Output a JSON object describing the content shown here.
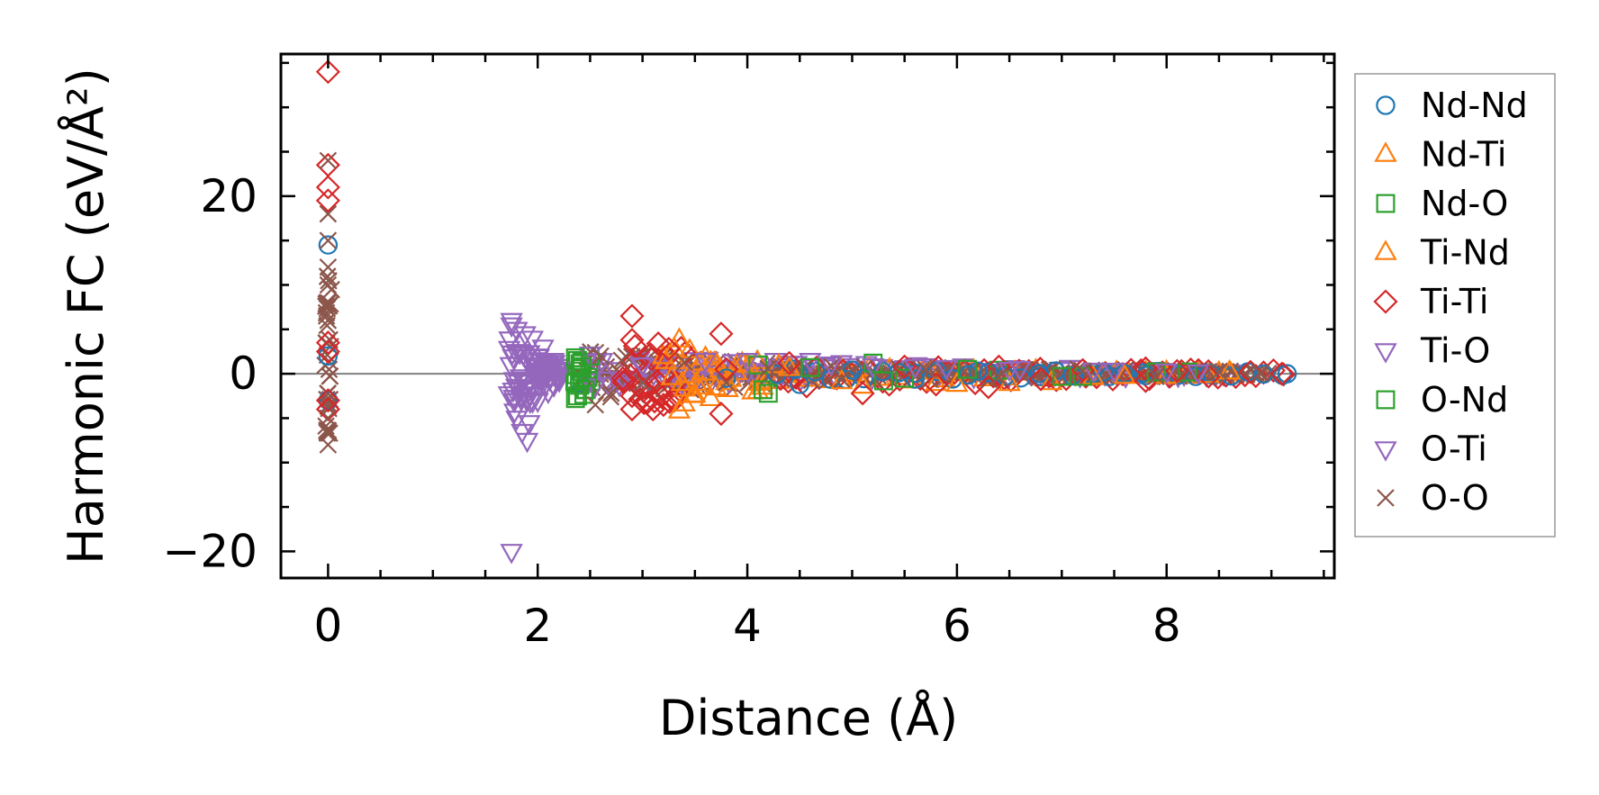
{
  "chart_data": {
    "type": "scatter",
    "title": "",
    "xlabel": "Distance (Å)",
    "ylabel": "Harmonic FC (eV/Å²)",
    "xlim": [
      -0.45,
      9.6
    ],
    "ylim": [
      -23,
      36
    ],
    "xticks": [
      0,
      2,
      4,
      6,
      8
    ],
    "xtick_labels": [
      "0",
      "2",
      "4",
      "6",
      "8"
    ],
    "yticks": [
      -20,
      0,
      20
    ],
    "ytick_labels": [
      "−20",
      "0",
      "20"
    ],
    "xminor_step": 0.5,
    "yminor_step": 5,
    "grid": false,
    "zero_line": true,
    "legend_position": "outside-right",
    "series": [
      {
        "name": "Nd-Nd",
        "color": "#1f77b4",
        "marker": "circle",
        "points": [
          [
            0,
            14.5
          ],
          [
            0,
            -3
          ],
          [
            0,
            2
          ],
          [
            2.4,
            -1
          ],
          [
            3.8,
            -0.5
          ],
          [
            4.5,
            -1.2
          ],
          [
            5.0,
            0.4
          ],
          [
            5.6,
            -0.6
          ],
          [
            6.2,
            0.3
          ],
          [
            6.8,
            -0.3
          ],
          [
            7.4,
            0.2
          ],
          [
            7.8,
            -0.2
          ],
          [
            8.4,
            0.1
          ],
          [
            9.15,
            0
          ]
        ]
      },
      {
        "name": "Nd-Ti",
        "color": "#ff7f0e",
        "marker": "triangle-up",
        "points": [
          [
            3.35,
            3.8
          ],
          [
            3.35,
            -4.2
          ],
          [
            3.45,
            2.6
          ],
          [
            3.5,
            -2.4
          ],
          [
            3.6,
            1.8
          ],
          [
            3.7,
            -1.6
          ],
          [
            4.1,
            -2.0
          ],
          [
            4.3,
            0.9
          ],
          [
            4.9,
            -0.9
          ],
          [
            5.8,
            -1.1
          ],
          [
            6.5,
            -1.1
          ],
          [
            7.3,
            -0.4
          ],
          [
            8.0,
            -0.3
          ],
          [
            8.6,
            0.2
          ]
        ]
      },
      {
        "name": "Nd-O",
        "color": "#2ca02c",
        "marker": "square",
        "points": [
          [
            2.38,
            -2.5
          ],
          [
            2.38,
            1.5
          ],
          [
            2.4,
            -0.9
          ],
          [
            2.4,
            0.3
          ],
          [
            2.45,
            -1.8
          ],
          [
            2.5,
            2.0
          ],
          [
            4.2,
            -2.2
          ],
          [
            4.1,
            1.0
          ],
          [
            5.2,
            1.2
          ],
          [
            5.5,
            -0.5
          ],
          [
            6.4,
            0.4
          ],
          [
            7.2,
            -0.3
          ],
          [
            8.2,
            0.2
          ]
        ]
      },
      {
        "name": "Ti-Nd",
        "color": "#ff7f0e",
        "marker": "triangle-up",
        "points": [
          [
            3.3,
            2.8
          ],
          [
            3.4,
            -3.4
          ],
          [
            3.55,
            1.2
          ],
          [
            3.65,
            -2.8
          ],
          [
            3.8,
            -1.0
          ],
          [
            4.4,
            0.6
          ],
          [
            5.1,
            -1.4
          ],
          [
            6.0,
            -1.2
          ],
          [
            6.9,
            -1.0
          ],
          [
            7.6,
            -0.3
          ],
          [
            8.4,
            -0.2
          ]
        ]
      },
      {
        "name": "Ti-Ti",
        "color": "#d62728",
        "marker": "diamond",
        "points": [
          [
            0,
            34
          ],
          [
            0,
            23.5
          ],
          [
            0,
            21
          ],
          [
            0,
            19.5
          ],
          [
            0,
            3.5
          ],
          [
            0,
            2.5
          ],
          [
            0,
            -3
          ],
          [
            0,
            -4
          ],
          [
            2.9,
            6.5
          ],
          [
            2.9,
            3.8
          ],
          [
            2.9,
            -2.5
          ],
          [
            2.9,
            -4
          ],
          [
            3.05,
            -3.2
          ],
          [
            3.1,
            -4
          ],
          [
            3.15,
            3.4
          ],
          [
            3.2,
            -3.5
          ],
          [
            3.25,
            2.8
          ],
          [
            3.75,
            4.5
          ],
          [
            3.75,
            -4.5
          ],
          [
            3.8,
            0.5
          ],
          [
            4.4,
            1.2
          ],
          [
            5.1,
            -2.2
          ],
          [
            5.5,
            0.8
          ],
          [
            5.8,
            -1.2
          ],
          [
            6.3,
            -1.5
          ],
          [
            6.4,
            0.8
          ],
          [
            6.8,
            -0.6
          ],
          [
            7.2,
            0.4
          ],
          [
            7.8,
            0.6
          ],
          [
            7.8,
            -0.8
          ],
          [
            8.1,
            0.3
          ],
          [
            8.4,
            -0.3
          ],
          [
            8.8,
            0.2
          ],
          [
            9.1,
            0.0
          ]
        ]
      },
      {
        "name": "Ti-O",
        "color": "#9467bd",
        "marker": "triangle-down",
        "points": [
          [
            1.75,
            6
          ],
          [
            1.75,
            -20
          ],
          [
            1.8,
            5
          ],
          [
            1.8,
            -5
          ],
          [
            1.85,
            -6.5
          ],
          [
            1.9,
            -7.5
          ],
          [
            1.95,
            4
          ],
          [
            2.0,
            -3
          ],
          [
            2.05,
            3
          ],
          [
            2.1,
            -2
          ],
          [
            2.15,
            1.5
          ],
          [
            2.2,
            0.5
          ],
          [
            2.5,
            2.2
          ],
          [
            3.0,
            1.0
          ],
          [
            4.6,
            1.5
          ],
          [
            5.2,
            0.9
          ],
          [
            5.9,
            0.7
          ],
          [
            6.6,
            0.6
          ],
          [
            7.5,
            0.4
          ],
          [
            8.3,
            0.2
          ]
        ]
      },
      {
        "name": "O-Nd",
        "color": "#2ca02c",
        "marker": "square",
        "points": [
          [
            2.36,
            -2.8
          ],
          [
            2.36,
            1.8
          ],
          [
            2.4,
            -1.3
          ],
          [
            2.42,
            0.8
          ],
          [
            2.48,
            -0.4
          ],
          [
            4.15,
            -1.8
          ],
          [
            4.6,
            0.7
          ],
          [
            5.3,
            -0.8
          ],
          [
            6.1,
            0.5
          ],
          [
            7.0,
            -0.3
          ],
          [
            7.9,
            0.2
          ]
        ]
      },
      {
        "name": "O-Ti",
        "color": "#9467bd",
        "marker": "triangle-down",
        "points": [
          [
            1.75,
            5.5
          ],
          [
            1.78,
            -4.2
          ],
          [
            1.82,
            2.5
          ],
          [
            1.85,
            -2.5
          ],
          [
            1.88,
            4.5
          ],
          [
            1.92,
            -5.5
          ],
          [
            1.96,
            1.0
          ],
          [
            2.0,
            2.0
          ],
          [
            2.05,
            -1.0
          ],
          [
            2.1,
            0.8
          ],
          [
            2.18,
            -0.5
          ],
          [
            3.6,
            1.5
          ],
          [
            4.0,
            1.5
          ],
          [
            4.8,
            1.1
          ],
          [
            5.6,
            0.8
          ],
          [
            6.5,
            0.5
          ],
          [
            7.3,
            0.4
          ],
          [
            8.0,
            0.3
          ]
        ]
      },
      {
        "name": "O-O",
        "color": "#8c564b",
        "marker": "x",
        "points": [
          [
            0,
            24
          ],
          [
            0,
            18
          ],
          [
            0,
            15
          ],
          [
            0,
            12
          ],
          [
            0,
            10
          ],
          [
            0,
            8
          ],
          [
            0,
            6
          ],
          [
            0,
            -5
          ],
          [
            0,
            -6.5
          ],
          [
            0,
            -8
          ],
          [
            2.55,
            -3.5
          ],
          [
            2.6,
            2.0
          ],
          [
            2.7,
            -2.2
          ],
          [
            2.8,
            1.5
          ],
          [
            3.0,
            -1.0
          ],
          [
            3.4,
            1.3
          ],
          [
            3.8,
            -1.0
          ],
          [
            4.2,
            0.6
          ],
          [
            4.9,
            -0.6
          ],
          [
            5.7,
            0.5
          ],
          [
            6.4,
            -0.4
          ],
          [
            7.2,
            0.3
          ],
          [
            7.9,
            -0.3
          ],
          [
            8.5,
            0.2
          ],
          [
            8.9,
            0.1
          ]
        ]
      }
    ],
    "bands": [
      {
        "series": "O-Ti",
        "x_from": 1.72,
        "x_to": 2.22,
        "y_low_from": -5.0,
        "y_low_to": -0.8,
        "y_high_from": 4.0,
        "y_high_to": 0.8,
        "count": 70
      },
      {
        "series": "Nd-O",
        "x_from": 2.36,
        "x_to": 2.5,
        "y_low_from": -2.6,
        "y_low_to": -2.2,
        "y_high_from": 2.0,
        "y_high_to": 1.6,
        "count": 14
      },
      {
        "series": "O-O",
        "x_from": 2.45,
        "x_to": 4.2,
        "y_low_from": -3.0,
        "y_low_to": -1.2,
        "y_high_from": 2.6,
        "y_high_to": 1.2,
        "count": 90
      },
      {
        "series": "Ti-O",
        "x_from": 2.5,
        "x_to": 4.6,
        "y_low_from": -1.6,
        "y_low_to": -0.6,
        "y_high_from": 2.0,
        "y_high_to": 1.5,
        "count": 55
      },
      {
        "series": "Ti-Ti",
        "x_from": 2.8,
        "x_to": 3.4,
        "y_low_from": -3.8,
        "y_low_to": -3.0,
        "y_high_from": 3.8,
        "y_high_to": 3.0,
        "count": 26
      },
      {
        "series": "Nd-Ti",
        "x_from": 3.2,
        "x_to": 4.2,
        "y_low_from": -2.8,
        "y_low_to": -2.0,
        "y_high_from": 2.6,
        "y_high_to": 1.2,
        "count": 26
      },
      {
        "series": "Ti-O",
        "x_from": 4.3,
        "x_to": 8.6,
        "y_low_from": -0.6,
        "y_low_to": -0.2,
        "y_high_from": 1.4,
        "y_high_to": 0.4,
        "count": 80
      },
      {
        "series": "Nd-Ti",
        "x_from": 4.3,
        "x_to": 8.6,
        "y_low_from": -1.2,
        "y_low_to": -0.2,
        "y_high_from": 0.8,
        "y_high_to": 0.3,
        "count": 45
      },
      {
        "series": "Ti-Ti",
        "x_from": 4.3,
        "x_to": 9.1,
        "y_low_from": -1.6,
        "y_low_to": -0.3,
        "y_high_from": 1.0,
        "y_high_to": 0.4,
        "count": 55
      },
      {
        "series": "O-O",
        "x_from": 4.2,
        "x_to": 9.0,
        "y_low_from": -1.0,
        "y_low_to": -0.2,
        "y_high_from": 1.0,
        "y_high_to": 0.3,
        "count": 110
      },
      {
        "series": "Nd-Nd",
        "x_from": 4.3,
        "x_to": 9.1,
        "y_low_from": -0.8,
        "y_low_to": -0.2,
        "y_high_from": 0.6,
        "y_high_to": 0.2,
        "count": 30
      },
      {
        "series": "O-O",
        "x_from": -0.02,
        "x_to": 0.02,
        "y_low_from": -7.0,
        "y_low_to": -7.0,
        "y_high_from": 12.0,
        "y_high_to": 12.0,
        "count": 36
      }
    ]
  }
}
